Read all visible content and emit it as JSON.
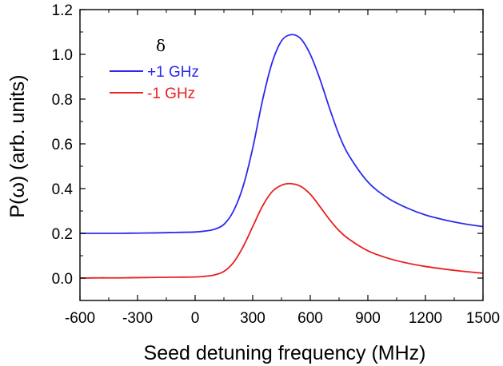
{
  "chart_data": {
    "type": "line",
    "xlabel": "Seed detuning frequency (MHz)",
    "ylabel": "P(ω) (arb. units)",
    "xlim": [
      -600,
      1500
    ],
    "ylim": [
      -0.1,
      1.2
    ],
    "xticks": [
      -600,
      -300,
      0,
      300,
      600,
      900,
      1200,
      1500
    ],
    "xtick_labels": [
      "-600",
      "-300",
      "0",
      "300",
      "600",
      "900",
      "1200",
      "1500"
    ],
    "yticks": [
      0.0,
      0.2,
      0.4,
      0.6,
      0.8,
      1.0,
      1.2
    ],
    "ytick_labels": [
      "0.0",
      "0.2",
      "0.4",
      "0.6",
      "0.8",
      "1.0",
      "1.2"
    ],
    "grid": false,
    "legend": {
      "title": "δ",
      "placement": "top-left"
    },
    "series": [
      {
        "name": "+1 GHz",
        "color": "#2b2bef",
        "points": [
          [
            -600,
            0.2
          ],
          [
            -500,
            0.2
          ],
          [
            -400,
            0.2
          ],
          [
            -300,
            0.201
          ],
          [
            -200,
            0.202
          ],
          [
            -100,
            0.204
          ],
          [
            0,
            0.206
          ],
          [
            50,
            0.21
          ],
          [
            100,
            0.218
          ],
          [
            150,
            0.24
          ],
          [
            200,
            0.3
          ],
          [
            250,
            0.41
          ],
          [
            300,
            0.58
          ],
          [
            350,
            0.79
          ],
          [
            400,
            0.96
          ],
          [
            450,
            1.06
          ],
          [
            500,
            1.088
          ],
          [
            550,
            1.07
          ],
          [
            600,
            1.0
          ],
          [
            650,
            0.89
          ],
          [
            700,
            0.76
          ],
          [
            750,
            0.64
          ],
          [
            800,
            0.55
          ],
          [
            900,
            0.43
          ],
          [
            1000,
            0.36
          ],
          [
            1100,
            0.315
          ],
          [
            1200,
            0.282
          ],
          [
            1300,
            0.26
          ],
          [
            1400,
            0.243
          ],
          [
            1500,
            0.23
          ]
        ]
      },
      {
        "name": "-1 GHz",
        "color": "#e8201f",
        "points": [
          [
            -600,
            0.0
          ],
          [
            -500,
            0.001
          ],
          [
            -400,
            0.001
          ],
          [
            -300,
            0.002
          ],
          [
            -200,
            0.003
          ],
          [
            -100,
            0.004
          ],
          [
            0,
            0.005
          ],
          [
            50,
            0.008
          ],
          [
            100,
            0.014
          ],
          [
            150,
            0.03
          ],
          [
            200,
            0.07
          ],
          [
            250,
            0.14
          ],
          [
            300,
            0.23
          ],
          [
            350,
            0.32
          ],
          [
            400,
            0.385
          ],
          [
            450,
            0.415
          ],
          [
            500,
            0.422
          ],
          [
            550,
            0.41
          ],
          [
            600,
            0.375
          ],
          [
            650,
            0.32
          ],
          [
            700,
            0.262
          ],
          [
            750,
            0.212
          ],
          [
            800,
            0.175
          ],
          [
            900,
            0.122
          ],
          [
            1000,
            0.09
          ],
          [
            1100,
            0.068
          ],
          [
            1200,
            0.052
          ],
          [
            1300,
            0.04
          ],
          [
            1400,
            0.03
          ],
          [
            1500,
            0.022
          ]
        ]
      }
    ]
  }
}
